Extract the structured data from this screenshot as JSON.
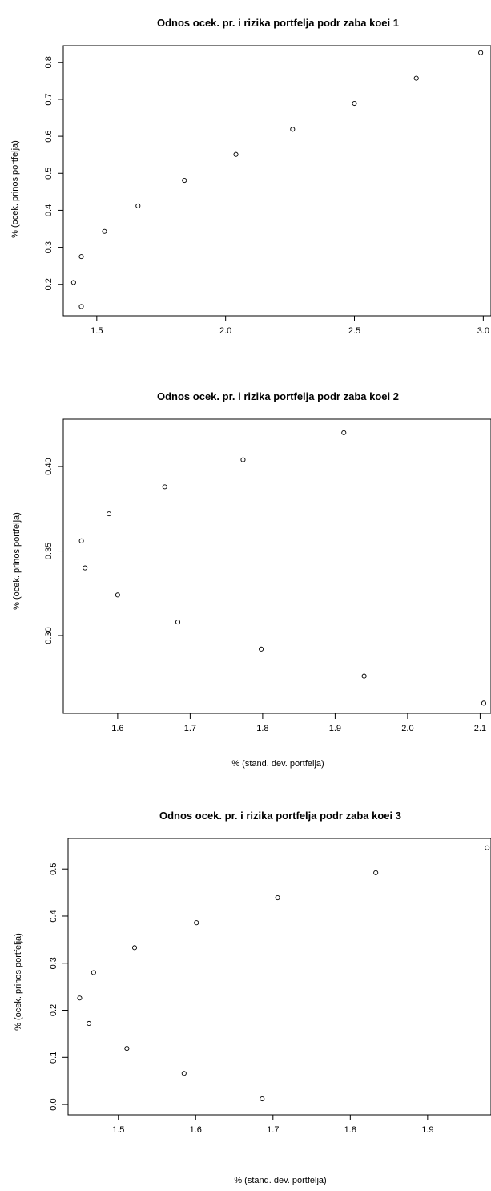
{
  "chart_data": [
    {
      "type": "scatter",
      "title": "Odnos ocek. pr. i rizika portfelja podr zaba koei 1",
      "xlabel": "",
      "ylabel": "% (ocek. prinos portfelja)",
      "xlim": [
        1.37,
        3.03
      ],
      "ylim": [
        0.115,
        0.845
      ],
      "x_ticks": [
        "1.5",
        "2.0",
        "2.5",
        "3.0"
      ],
      "y_ticks": [
        "0.2",
        "0.3",
        "0.4",
        "0.5",
        "0.6",
        "0.7",
        "0.8"
      ],
      "points": [
        {
          "x": 1.41,
          "y": 0.205
        },
        {
          "x": 1.44,
          "y": 0.14
        },
        {
          "x": 1.44,
          "y": 0.275
        },
        {
          "x": 1.53,
          "y": 0.343
        },
        {
          "x": 1.66,
          "y": 0.412
        },
        {
          "x": 1.84,
          "y": 0.481
        },
        {
          "x": 2.04,
          "y": 0.551
        },
        {
          "x": 2.26,
          "y": 0.619
        },
        {
          "x": 2.5,
          "y": 0.689
        },
        {
          "x": 2.74,
          "y": 0.757
        },
        {
          "x": 2.99,
          "y": 0.826
        }
      ]
    },
    {
      "type": "scatter",
      "title": "Odnos ocek. pr. i rizika portfelja podr zaba koei 2",
      "xlabel": "% (stand. dev. portfelja)",
      "ylabel": "% (ocek. prinos portfelja)",
      "xlim": [
        1.525,
        2.115
      ],
      "ylim": [
        0.254,
        0.428
      ],
      "x_ticks": [
        "1.6",
        "1.7",
        "1.8",
        "1.9",
        "2.0",
        "2.1"
      ],
      "y_ticks": [
        "0.30",
        "0.35",
        "0.40"
      ],
      "points": [
        {
          "x": 1.55,
          "y": 0.356
        },
        {
          "x": 1.555,
          "y": 0.34
        },
        {
          "x": 1.588,
          "y": 0.372
        },
        {
          "x": 1.6,
          "y": 0.324
        },
        {
          "x": 1.665,
          "y": 0.388
        },
        {
          "x": 1.683,
          "y": 0.308
        },
        {
          "x": 1.773,
          "y": 0.404
        },
        {
          "x": 1.798,
          "y": 0.292
        },
        {
          "x": 1.912,
          "y": 0.42
        },
        {
          "x": 1.94,
          "y": 0.276
        },
        {
          "x": 2.105,
          "y": 0.26
        }
      ]
    },
    {
      "type": "scatter",
      "title": "Odnos ocek. pr. i rizika portfelja podr zaba koei 3",
      "xlabel": "% (stand. dev. portfelja)",
      "ylabel": "% (ocek. prinos portfelja)",
      "xlim": [
        1.435,
        1.982
      ],
      "ylim": [
        -0.022,
        0.565
      ],
      "x_ticks": [
        "1.5",
        "1.6",
        "1.7",
        "1.8",
        "1.9"
      ],
      "y_ticks": [
        "0.0",
        "0.1",
        "0.2",
        "0.3",
        "0.4",
        "0.5"
      ],
      "points": [
        {
          "x": 1.45,
          "y": 0.226
        },
        {
          "x": 1.462,
          "y": 0.172
        },
        {
          "x": 1.468,
          "y": 0.28
        },
        {
          "x": 1.511,
          "y": 0.119
        },
        {
          "x": 1.521,
          "y": 0.333
        },
        {
          "x": 1.585,
          "y": 0.066
        },
        {
          "x": 1.601,
          "y": 0.386
        },
        {
          "x": 1.686,
          "y": 0.012
        },
        {
          "x": 1.706,
          "y": 0.439
        },
        {
          "x": 1.833,
          "y": 0.492
        },
        {
          "x": 1.977,
          "y": 0.545
        }
      ]
    }
  ]
}
